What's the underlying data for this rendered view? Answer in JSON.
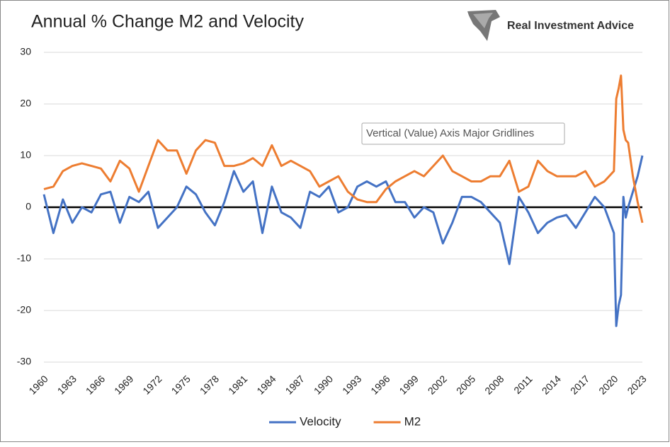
{
  "chart_data": {
    "type": "line",
    "title": "Annual % Change M2 and Velocity",
    "brand": "Real Investment Advice",
    "tooltip": "Vertical (Value) Axis Major Gridlines",
    "x": [
      1960,
      1961,
      1962,
      1963,
      1964,
      1965,
      1966,
      1967,
      1968,
      1969,
      1970,
      1971,
      1972,
      1973,
      1974,
      1975,
      1976,
      1977,
      1978,
      1979,
      1980,
      1981,
      1982,
      1983,
      1984,
      1985,
      1986,
      1987,
      1988,
      1989,
      1990,
      1991,
      1992,
      1993,
      1994,
      1995,
      1996,
      1997,
      1998,
      1999,
      2000,
      2001,
      2002,
      2003,
      2004,
      2005,
      2006,
      2007,
      2008,
      2009,
      2010,
      2011,
      2012,
      2013,
      2014,
      2015,
      2016,
      2017,
      2018,
      2019,
      2020,
      2020.25,
      2020.5,
      2020.75,
      2021,
      2021.25,
      2021.5,
      2022,
      2022.5,
      2023
    ],
    "series": [
      {
        "name": "Velocity",
        "color": "#4472c4",
        "values": [
          2.5,
          -5,
          1.5,
          -3,
          0,
          -1,
          2.5,
          3,
          -3,
          2,
          1,
          3,
          -4,
          -2,
          0,
          4,
          2.5,
          -1,
          -3.5,
          1,
          7,
          3,
          5,
          -5,
          4,
          -1,
          -2,
          -4,
          3,
          2,
          4,
          -1,
          0,
          4,
          5,
          4,
          5,
          1,
          1,
          -2,
          0,
          -1,
          -7,
          -3,
          2,
          2,
          1,
          -1,
          -3,
          -11,
          2,
          -1,
          -5,
          -3,
          -2,
          -1.5,
          -4,
          -1,
          2,
          0,
          -5,
          -23,
          -19,
          -17,
          2,
          -2,
          0,
          3,
          6,
          10
        ]
      },
      {
        "name": "M2",
        "color": "#ed7d31",
        "values": [
          3.5,
          4,
          7,
          8,
          8.5,
          8,
          7.5,
          5,
          9,
          7.5,
          3,
          8,
          13,
          11,
          11,
          6.5,
          11,
          13,
          12.5,
          8,
          8,
          8.5,
          9.5,
          8,
          12,
          8,
          9,
          8,
          7,
          4,
          5,
          6,
          3,
          1.5,
          1,
          1,
          3.5,
          5,
          6,
          7,
          6,
          8,
          10,
          7,
          6,
          5,
          5,
          6,
          6,
          9,
          3,
          4,
          9,
          7,
          6,
          6,
          6,
          7,
          4,
          5,
          7,
          21,
          23,
          25.5,
          15,
          13,
          12.5,
          6,
          1,
          -3
        ]
      }
    ],
    "xlim": [
      1960,
      2023
    ],
    "xticks": [
      1960,
      1963,
      1966,
      1969,
      1972,
      1975,
      1978,
      1981,
      1984,
      1987,
      1990,
      1993,
      1996,
      1999,
      2002,
      2005,
      2008,
      2011,
      2014,
      2017,
      2020,
      2023
    ],
    "ylim": [
      -30,
      30
    ],
    "yticks": [
      -30,
      -20,
      -10,
      0,
      10,
      20,
      30
    ],
    "grid": true,
    "zero_line": true,
    "legend": "bottom"
  }
}
